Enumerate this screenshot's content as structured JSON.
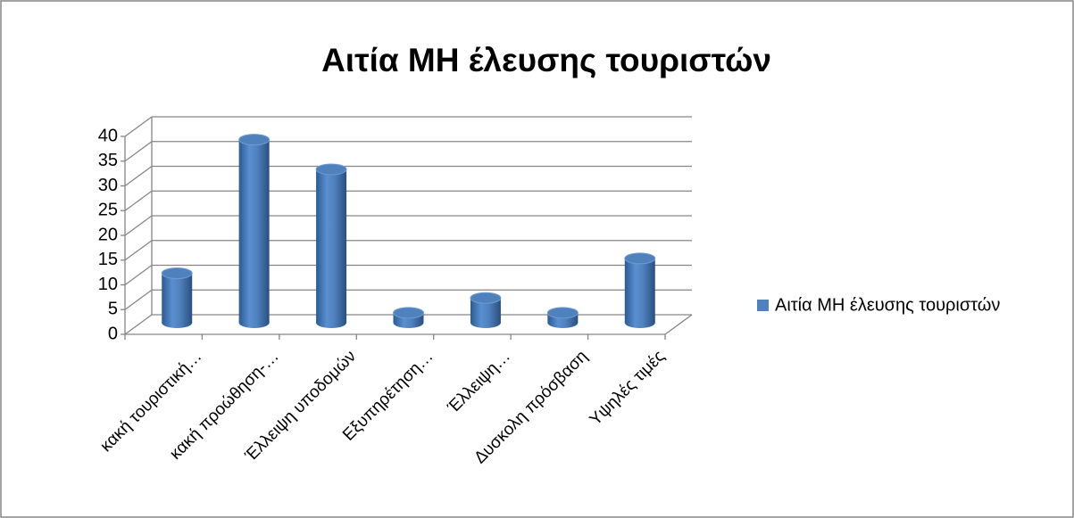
{
  "chart_data": {
    "type": "bar3d",
    "title": "Αιτία ΜΗ έλευσης τουριστών",
    "categories": [
      "κακή τουριστική…",
      "κακή προώθηση-…",
      "Έλλειψη υποδομών",
      "Εξυπηρέτηση…",
      "Έλλειψη…",
      "Δυσκολη πρόσβαση",
      "Υψηλές τιμές"
    ],
    "series": [
      {
        "name": "Αιτία ΜΗ έλευσης τουριστών",
        "color": "#4f81bd",
        "values": [
          10,
          37,
          31,
          2,
          5,
          2,
          13
        ]
      }
    ],
    "ylim": [
      0,
      40
    ],
    "yticks": [
      0,
      5,
      10,
      15,
      20,
      25,
      30,
      35,
      40
    ],
    "grid": true,
    "legend": "right"
  }
}
